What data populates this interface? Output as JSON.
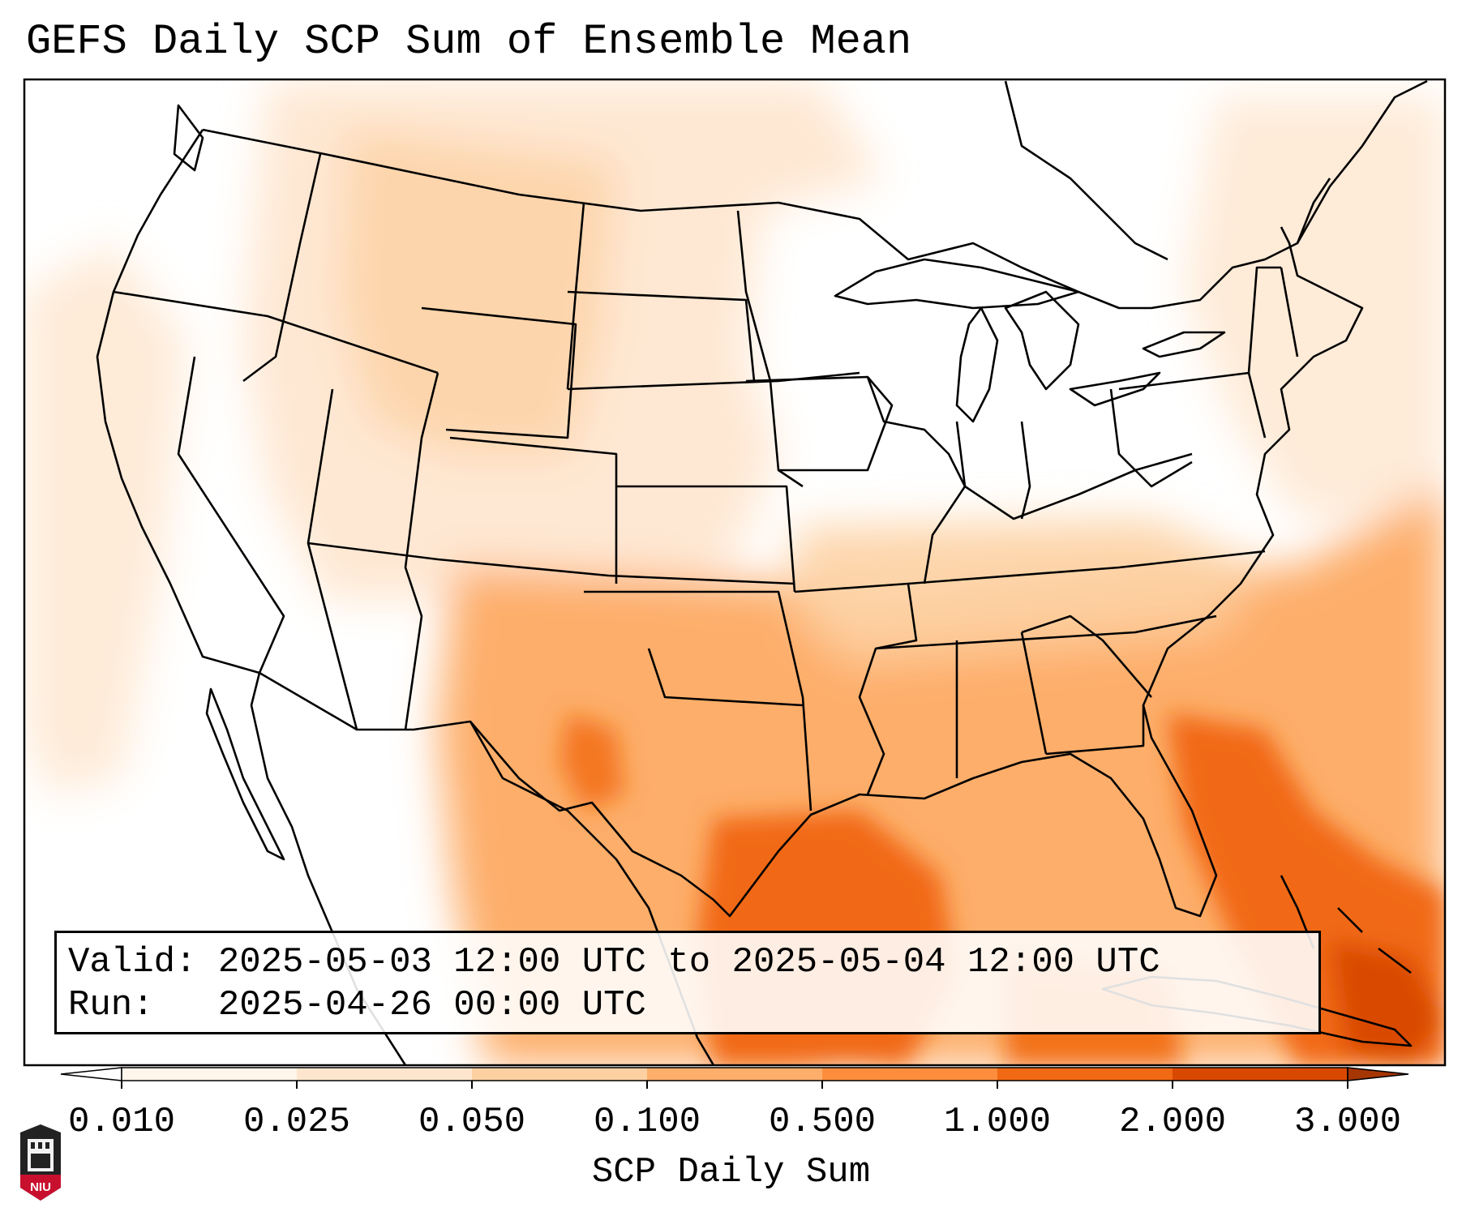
{
  "title": "GEFS Daily SCP Sum of Ensemble Mean",
  "info": {
    "valid_label": "Valid:",
    "valid_value": "2025-05-03 12:00 UTC to 2025-05-04 12:00 UTC",
    "run_label": "Run:",
    "run_value": "2025-04-26 00:00 UTC"
  },
  "colorbar": {
    "label": "SCP Daily Sum",
    "ticks": [
      "0.010",
      "0.025",
      "0.050",
      "0.100",
      "0.500",
      "1.000",
      "2.000",
      "3.000"
    ],
    "colors": [
      "#fff5eb",
      "#fee6ce",
      "#fdd0a2",
      "#fdae6b",
      "#fd8d3c",
      "#f16913",
      "#d94801",
      "#a63603"
    ],
    "extend": "both"
  },
  "map": {
    "background": "#ffffff",
    "border_color": "#000000"
  },
  "logo": {
    "text": "NIU",
    "color": "#c8102e"
  }
}
